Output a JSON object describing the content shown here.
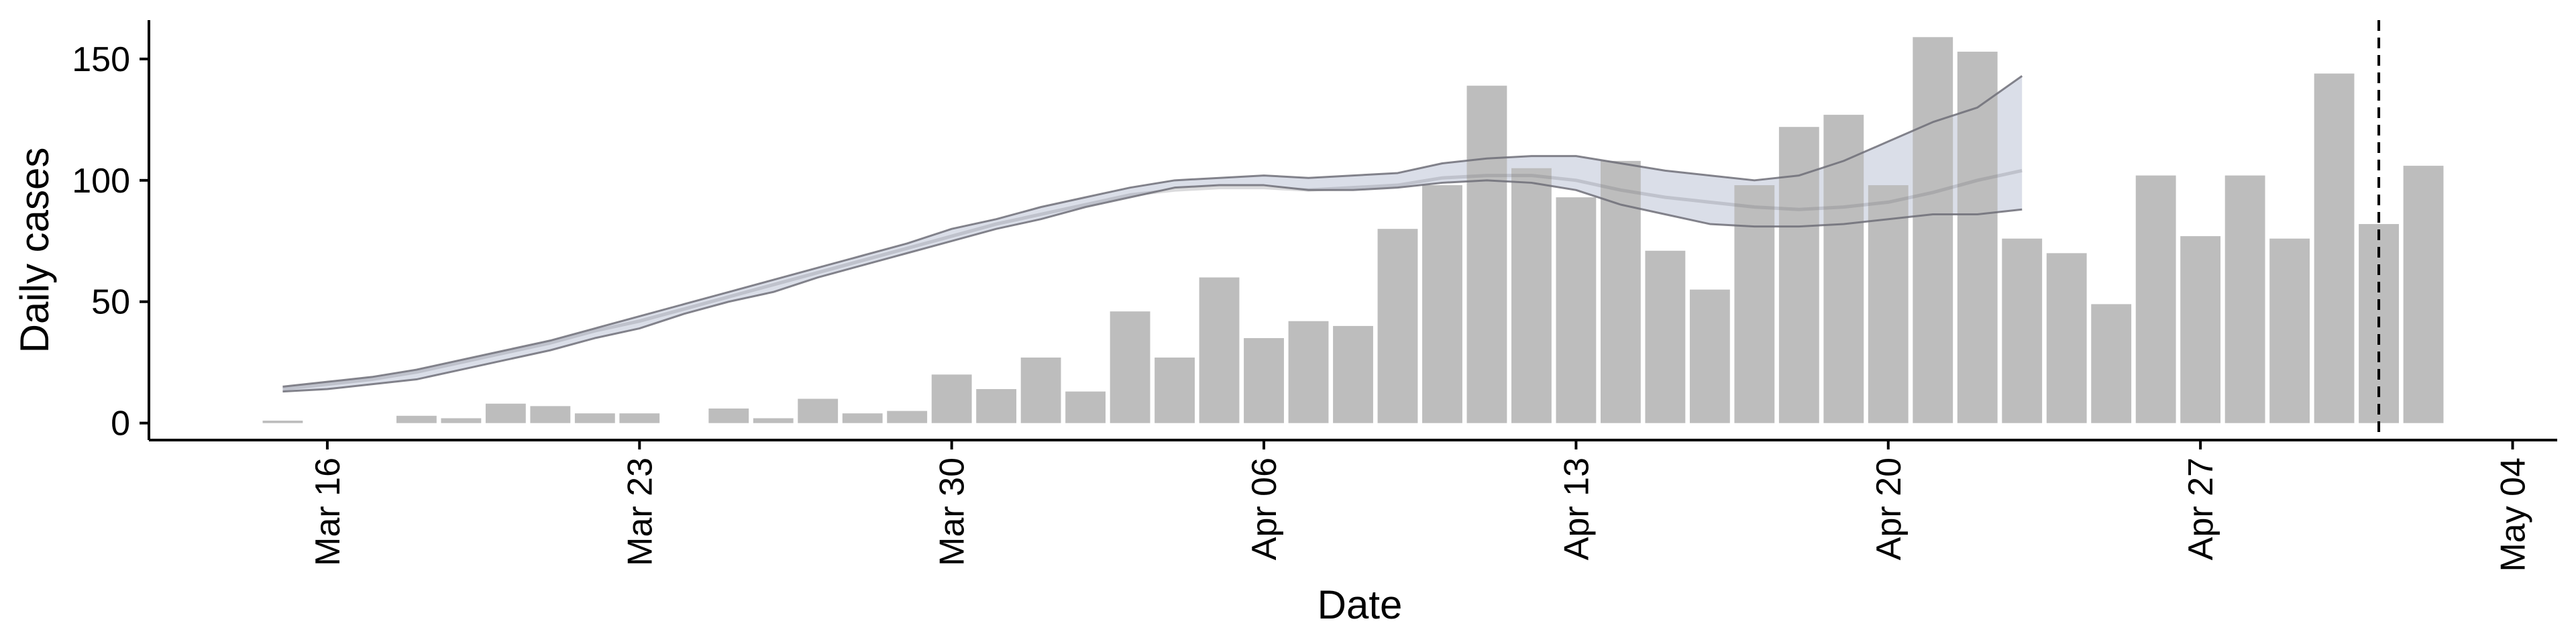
{
  "chart_data": {
    "type": "bar",
    "xlabel": "Date",
    "ylabel": "Daily cases",
    "ylim": [
      -7,
      166
    ],
    "xlim": [
      "2020-03-12",
      "2020-05-05"
    ],
    "yticks": [
      0,
      50,
      100,
      150
    ],
    "xticks": [
      {
        "date": "2020-03-16",
        "label": "Mar 16"
      },
      {
        "date": "2020-03-23",
        "label": "Mar 23"
      },
      {
        "date": "2020-03-30",
        "label": "Mar 30"
      },
      {
        "date": "2020-04-06",
        "label": "Apr 06"
      },
      {
        "date": "2020-04-13",
        "label": "Apr 13"
      },
      {
        "date": "2020-04-20",
        "label": "Apr 20"
      },
      {
        "date": "2020-04-27",
        "label": "Apr 27"
      },
      {
        "date": "2020-05-04",
        "label": "May 04"
      }
    ],
    "bars": {
      "dates": [
        "2020-03-15",
        "2020-03-16",
        "2020-03-17",
        "2020-03-18",
        "2020-03-19",
        "2020-03-20",
        "2020-03-21",
        "2020-03-22",
        "2020-03-23",
        "2020-03-24",
        "2020-03-25",
        "2020-03-26",
        "2020-03-27",
        "2020-03-28",
        "2020-03-29",
        "2020-03-30",
        "2020-03-31",
        "2020-04-01",
        "2020-04-02",
        "2020-04-03",
        "2020-04-04",
        "2020-04-05",
        "2020-04-06",
        "2020-04-07",
        "2020-04-08",
        "2020-04-09",
        "2020-04-10",
        "2020-04-11",
        "2020-04-12",
        "2020-04-13",
        "2020-04-14",
        "2020-04-15",
        "2020-04-16",
        "2020-04-17",
        "2020-04-18",
        "2020-04-19",
        "2020-04-20",
        "2020-04-21",
        "2020-04-22",
        "2020-04-23",
        "2020-04-24",
        "2020-04-25",
        "2020-04-26",
        "2020-04-27",
        "2020-04-28",
        "2020-04-29",
        "2020-04-30",
        "2020-05-01",
        "2020-05-02"
      ],
      "values": [
        1,
        0,
        0,
        3,
        2,
        8,
        7,
        4,
        4,
        0,
        6,
        2,
        10,
        4,
        5,
        20,
        14,
        27,
        13,
        46,
        27,
        60,
        35,
        42,
        40,
        80,
        98,
        139,
        105,
        93,
        108,
        71,
        55,
        98,
        122,
        127,
        98,
        159,
        153,
        76,
        70,
        49,
        102,
        77,
        102,
        76,
        144,
        82,
        106
      ]
    },
    "series": [
      {
        "dates": [
          "2020-03-15",
          "2020-03-16",
          "2020-03-17",
          "2020-03-18",
          "2020-03-19",
          "2020-03-20",
          "2020-03-21",
          "2020-03-22",
          "2020-03-23",
          "2020-03-24",
          "2020-03-25",
          "2020-03-26",
          "2020-03-27",
          "2020-03-28",
          "2020-03-29",
          "2020-03-30",
          "2020-03-31",
          "2020-04-01",
          "2020-04-02",
          "2020-04-03",
          "2020-04-04",
          "2020-04-05",
          "2020-04-06",
          "2020-04-07",
          "2020-04-08",
          "2020-04-09",
          "2020-04-10",
          "2020-04-11",
          "2020-04-12",
          "2020-04-13",
          "2020-04-14",
          "2020-04-15",
          "2020-04-16",
          "2020-04-17",
          "2020-04-18",
          "2020-04-19",
          "2020-04-20",
          "2020-04-21",
          "2020-04-22",
          "2020-04-23"
        ],
        "values": [
          14,
          16,
          18,
          21,
          25,
          29,
          33,
          38,
          42,
          47,
          52,
          57,
          62,
          67,
          72,
          77,
          82,
          86,
          90,
          94,
          96,
          97,
          97,
          96,
          97,
          98,
          101,
          102,
          102,
          100,
          96,
          93,
          91,
          89,
          88,
          89,
          91,
          95,
          100,
          104
        ],
        "lower": [
          13,
          14,
          16,
          18,
          22,
          26,
          30,
          35,
          39,
          45,
          50,
          54,
          60,
          65,
          70,
          75,
          80,
          84,
          89,
          93,
          97,
          98,
          98,
          96,
          96,
          97,
          99,
          100,
          99,
          96,
          90,
          86,
          82,
          81,
          81,
          82,
          84,
          86,
          86,
          88
        ],
        "upper": [
          15,
          17,
          19,
          22,
          26,
          30,
          34,
          39,
          44,
          49,
          54,
          59,
          64,
          69,
          74,
          80,
          84,
          89,
          93,
          97,
          100,
          101,
          102,
          101,
          102,
          103,
          107,
          109,
          110,
          110,
          107,
          104,
          102,
          100,
          102,
          108,
          116,
          124,
          130,
          143
        ]
      }
    ],
    "vline": "2020-05-01",
    "colors": {
      "bar": "#bdbdbd",
      "line": "#6e6e78",
      "band": "#aeb6cc",
      "axis": "#000000"
    }
  }
}
